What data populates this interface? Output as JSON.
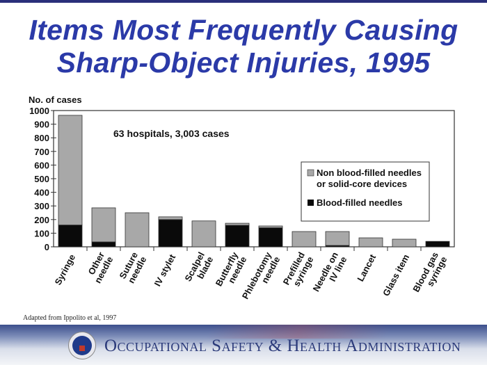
{
  "slide": {
    "title_line1": "Items Most Frequently Causing",
    "title_line2": "Sharp-Object Injuries, 1995",
    "source": "Adapted from Ippolito et al, 1997",
    "agency": "Occupational Safety & Health Administration"
  },
  "chart_data": {
    "type": "bar",
    "stacked": true,
    "ylabel": "No. of cases",
    "annotation": "63 hospitals,  3,003 cases",
    "ylim": [
      0,
      1000
    ],
    "yticks": [
      0,
      100,
      200,
      300,
      400,
      500,
      600,
      700,
      800,
      900,
      1000
    ],
    "categories": [
      [
        "Syringe"
      ],
      [
        "Other",
        "needle"
      ],
      [
        "Suture",
        "needle"
      ],
      [
        "IV stylet"
      ],
      [
        "Scalpel",
        "blade"
      ],
      [
        "Butterfly",
        "needle"
      ],
      [
        "Phlebotomy",
        "needle"
      ],
      [
        "Prefilled",
        "syringe"
      ],
      [
        "Needle on",
        "IV line"
      ],
      [
        "Lancet"
      ],
      [
        "Glass item"
      ],
      [
        "Blood gas",
        "syringe"
      ]
    ],
    "series": [
      {
        "name": "Blood-filled needles",
        "color": "#0a0a0a",
        "values": [
          160,
          36,
          0,
          200,
          0,
          158,
          140,
          0,
          10,
          0,
          0,
          40
        ]
      },
      {
        "name": "Non blood-filled needles or solid-core devices",
        "color": "#a8a8a8",
        "values": [
          805,
          250,
          250,
          20,
          190,
          15,
          13,
          112,
          102,
          66,
          56,
          0
        ]
      }
    ],
    "legend_lines": [
      "Non blood-filled needles",
      "or solid-core devices",
      "Blood-filled needles"
    ],
    "legend_position": "right",
    "grid": false
  }
}
